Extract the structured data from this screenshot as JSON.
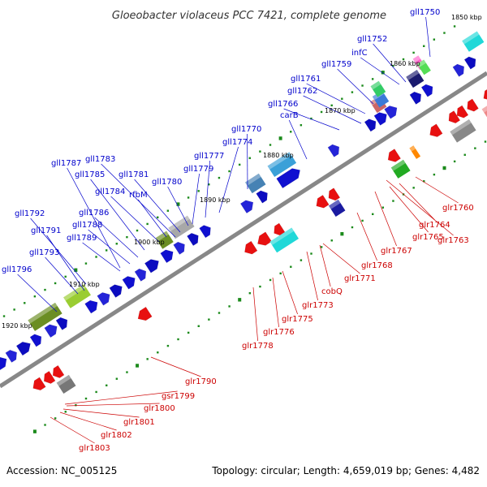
{
  "title": "Gloeobacter violaceus PCC 7421, complete genome",
  "footer": {
    "accession": "Accession: NC_005125",
    "topology": "Topology: circular; Length: 4,659,019 bp; Genes: 4,482"
  },
  "colors": {
    "forward_label": "#0000cc",
    "reverse_label": "#cc0000",
    "forward_gene": "#1010d0",
    "reverse_gene": "#e81010",
    "backbone": "#888888",
    "tick": "#1b8a1b"
  },
  "kbp_ticks": [
    "1850 kbp",
    "1860 kbp",
    "1870 kbp",
    "1880 kbp",
    "1890 kbp",
    "1900 kbp",
    "1910 kbp",
    "1920 kbp"
  ],
  "forward_labels": [
    "gll1750",
    "gll1752",
    "infC",
    "gll1759",
    "gll1761",
    "gll1762",
    "gll1766",
    "carB",
    "gll1770",
    "gll1774",
    "gll1777",
    "gll1779",
    "gll1780",
    "gll1781",
    "gll1783",
    "rfbM",
    "gll1784",
    "gll1785",
    "gll1786",
    "gll1787",
    "gll1788",
    "gll1789",
    "gll1791",
    "gll1792",
    "gll1793",
    "gll1796"
  ],
  "reverse_labels": [
    "glr1760",
    "glr1764",
    "glr1763",
    "glr1765",
    "glr1767",
    "glr1768",
    "glr1771",
    "cobQ",
    "glr1773",
    "glr1775",
    "glr1776",
    "glr1778",
    "glr1790",
    "gsr1799",
    "glr1800",
    "glr1801",
    "glr1802",
    "glr1803"
  ]
}
